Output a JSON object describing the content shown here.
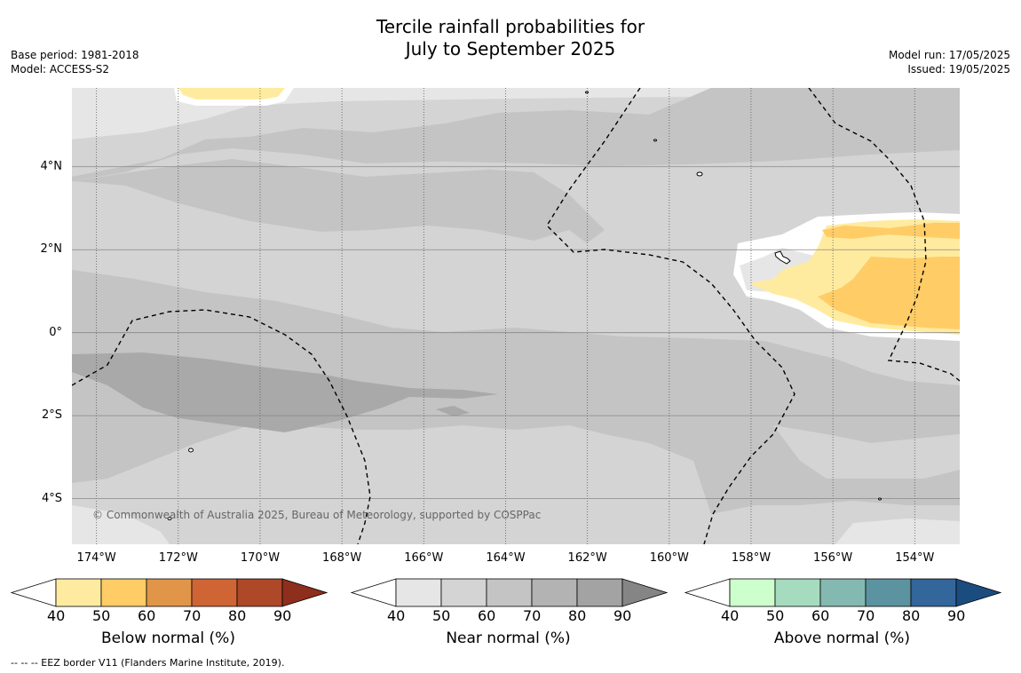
{
  "title": {
    "line1": "Tercile rainfall probabilities for",
    "line2": "July to September 2025"
  },
  "meta_left": {
    "base_period": "Base period: 1981-2018",
    "model": "Model: ACCESS-S2"
  },
  "meta_right": {
    "model_run": "Model run: 17/05/2025",
    "issued": "Issued: 19/05/2025"
  },
  "map": {
    "lon_range": [
      -174.6,
      -152.9
    ],
    "lat_range": [
      -5.1,
      5.9
    ],
    "y_ticks": [
      {
        "lat": 4,
        "label": "4°N"
      },
      {
        "lat": 2,
        "label": "2°N"
      },
      {
        "lat": 0,
        "label": "0°"
      },
      {
        "lat": -2,
        "label": "2°S"
      },
      {
        "lat": -4,
        "label": "4°S"
      }
    ],
    "x_ticks": [
      {
        "lon": -174,
        "label": "174°W"
      },
      {
        "lon": -172,
        "label": "172°W"
      },
      {
        "lon": -170,
        "label": "170°W"
      },
      {
        "lon": -168,
        "label": "168°W"
      },
      {
        "lon": -166,
        "label": "166°W"
      },
      {
        "lon": -164,
        "label": "164°W"
      },
      {
        "lon": -162,
        "label": "162°W"
      },
      {
        "lon": -160,
        "label": "160°W"
      },
      {
        "lon": -158,
        "label": "158°W"
      },
      {
        "lon": -156,
        "label": "156°W"
      },
      {
        "lon": -154,
        "label": "154°W"
      }
    ],
    "credit": "© Commonwealth of Australia 2025, Bureau of Meteorology, supported by COSPPac",
    "colors": {
      "near_40_50": "#e6e6e6",
      "near_50_60": "#d4d4d4",
      "near_60_70": "#c4c4c4",
      "near_70_80": "#a9a9a9",
      "below_40_50": "#ffeba0",
      "below_50_60": "#ffcc66"
    }
  },
  "colorbars": [
    {
      "title": "Below normal (%)",
      "ticks": [
        "40",
        "50",
        "60",
        "70",
        "80",
        "90"
      ],
      "colors": [
        "#ffffff",
        "#ffeba0",
        "#ffcc66",
        "#e09548",
        "#cf6535",
        "#ad4828",
        "#8e2e1c"
      ]
    },
    {
      "title": "Near normal (%)",
      "ticks": [
        "40",
        "50",
        "60",
        "70",
        "80",
        "90"
      ],
      "colors": [
        "#ffffff",
        "#e6e6e6",
        "#d4d4d4",
        "#c4c4c4",
        "#b3b3b3",
        "#a3a3a3",
        "#858585"
      ]
    },
    {
      "title": "Above normal (%)",
      "ticks": [
        "40",
        "50",
        "60",
        "70",
        "80",
        "90"
      ],
      "colors": [
        "#ffffff",
        "#ccffcc",
        "#a5dbbf",
        "#84b9b1",
        "#5c93a0",
        "#33669a",
        "#1b4c80"
      ]
    }
  ],
  "footer": "--  --  -- EEZ border V11 (Flanders Marine Institute, 2019)."
}
